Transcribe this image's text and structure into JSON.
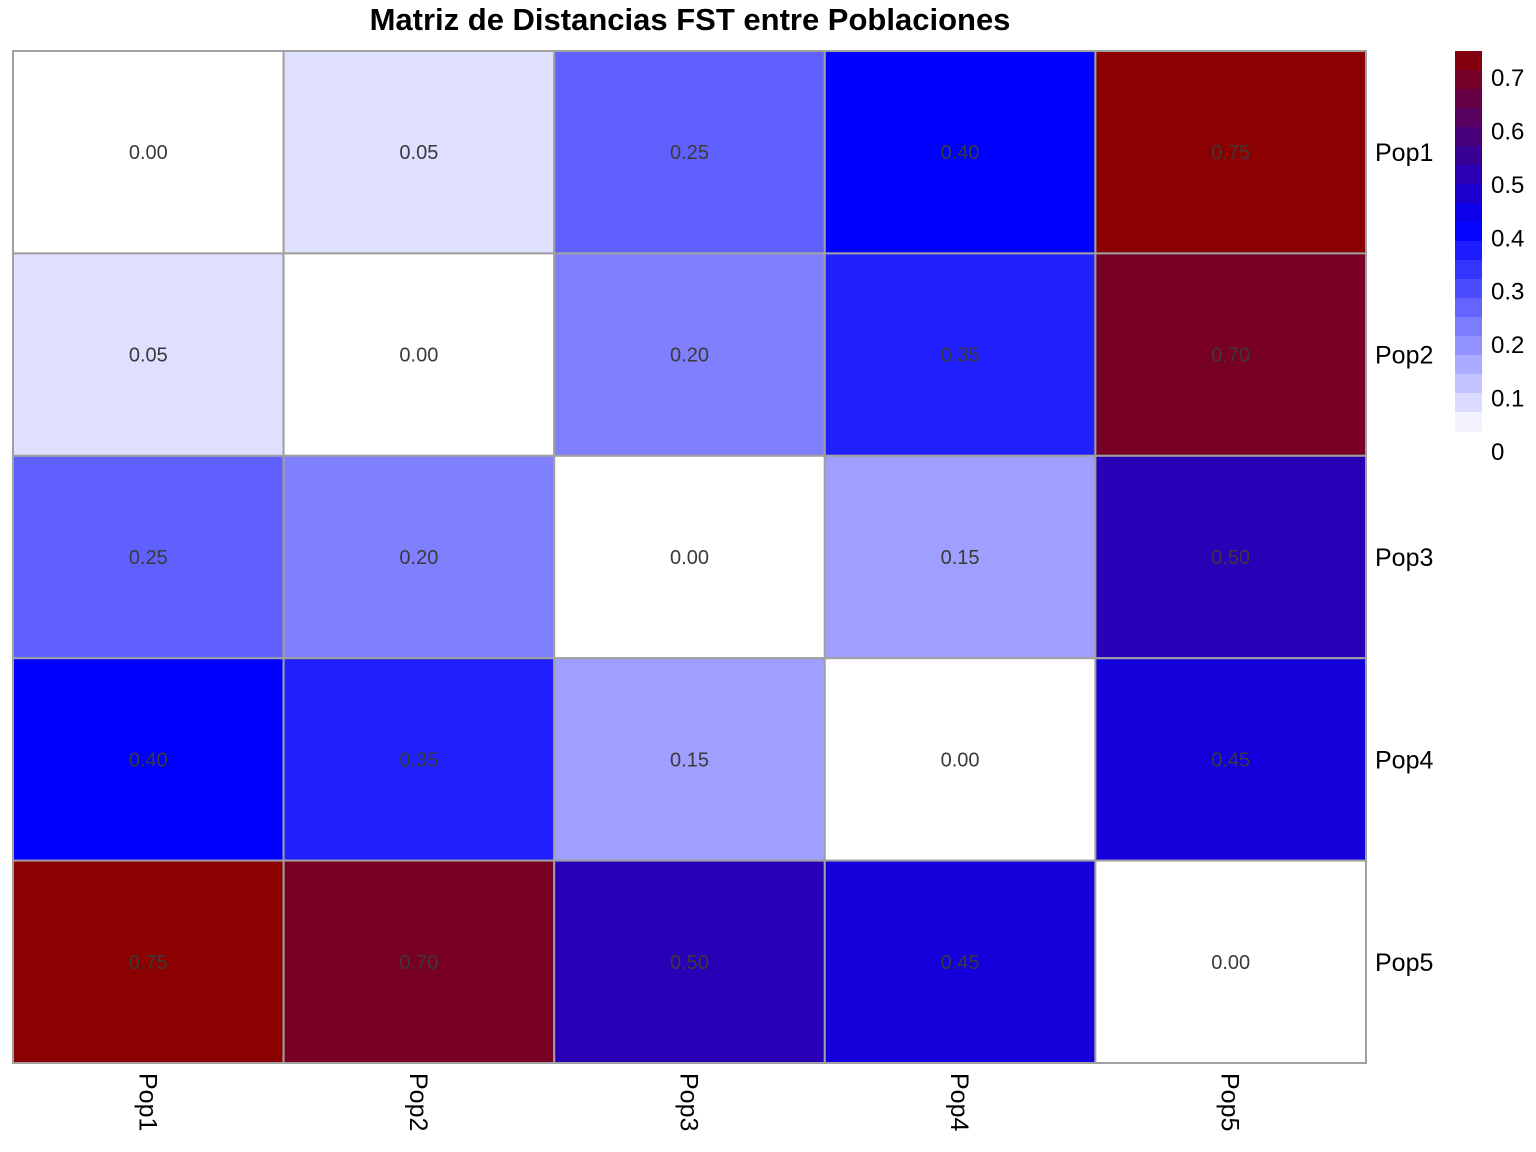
{
  "chart_data": {
    "type": "heatmap",
    "title": "Matriz de Distancias FST entre Poblaciones",
    "rows": [
      "Pop1",
      "Pop2",
      "Pop3",
      "Pop4",
      "Pop5"
    ],
    "columns": [
      "Pop1",
      "Pop2",
      "Pop3",
      "Pop4",
      "Pop5"
    ],
    "values": [
      [
        0.0,
        0.05,
        0.25,
        0.4,
        0.75
      ],
      [
        0.05,
        0.0,
        0.2,
        0.35,
        0.7
      ],
      [
        0.25,
        0.2,
        0.0,
        0.15,
        0.5
      ],
      [
        0.4,
        0.35,
        0.15,
        0.0,
        0.45
      ],
      [
        0.75,
        0.7,
        0.5,
        0.45,
        0.0
      ]
    ],
    "cell_labels": [
      [
        "0.00",
        "0.05",
        "0.25",
        "0.40",
        "0.75"
      ],
      [
        "0.05",
        "0.00",
        "0.20",
        "0.35",
        "0.70"
      ],
      [
        "0.25",
        "0.20",
        "0.00",
        "0.15",
        "0.50"
      ],
      [
        "0.40",
        "0.35",
        "0.15",
        "0.00",
        "0.45"
      ],
      [
        "0.75",
        "0.70",
        "0.50",
        "0.45",
        "0.00"
      ]
    ],
    "row_label_side": "right",
    "column_label_side": "bottom",
    "column_label_rotation": "vertical",
    "legend": {
      "position": "top-right",
      "ticks": [
        "0",
        "0.1",
        "0.2",
        "0.3",
        "0.4",
        "0.5",
        "0.6",
        "0.7"
      ],
      "tick_values": [
        0,
        0.1,
        0.2,
        0.3,
        0.4,
        0.5,
        0.6,
        0.7
      ],
      "range": [
        0,
        0.75
      ]
    },
    "color_scale": {
      "stops": [
        {
          "value": 0.0,
          "color": "#ffffff"
        },
        {
          "value": 0.4,
          "color": "#0000ff"
        },
        {
          "value": 0.75,
          "color": "#8b0000"
        }
      ]
    },
    "grid_color": "#a0a0a0"
  }
}
